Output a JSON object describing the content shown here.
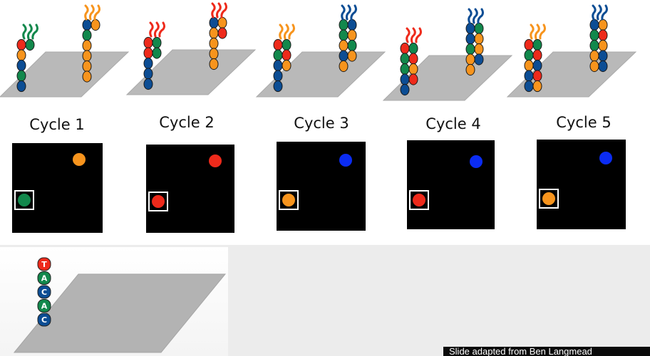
{
  "colors": {
    "orange": "#f7941d",
    "red": "#ee2a1b",
    "green": "#12884c",
    "blue": "#0c4d94",
    "bright_blue": "#0b2cf3",
    "plate": "#b9b9b9"
  },
  "cycles": [
    {
      "label": "Cycle 1",
      "top_signal": "orange",
      "boxed_signal": "green"
    },
    {
      "label": "Cycle 2",
      "top_signal": "red",
      "boxed_signal": "red"
    },
    {
      "label": "Cycle 3",
      "top_signal": "bright_blue",
      "boxed_signal": "orange"
    },
    {
      "label": "Cycle 4",
      "top_signal": "bright_blue",
      "boxed_signal": "red"
    },
    {
      "label": "Cycle 5",
      "top_signal": "bright_blue",
      "boxed_signal": "orange"
    }
  ],
  "sequence": [
    {
      "letter": "T",
      "color": "red"
    },
    {
      "letter": "A",
      "color": "green"
    },
    {
      "letter": "C",
      "color": "blue"
    },
    {
      "letter": "A",
      "color": "green"
    },
    {
      "letter": "C",
      "color": "blue"
    }
  ],
  "caption": "Slide adapted from Ben Langmead"
}
